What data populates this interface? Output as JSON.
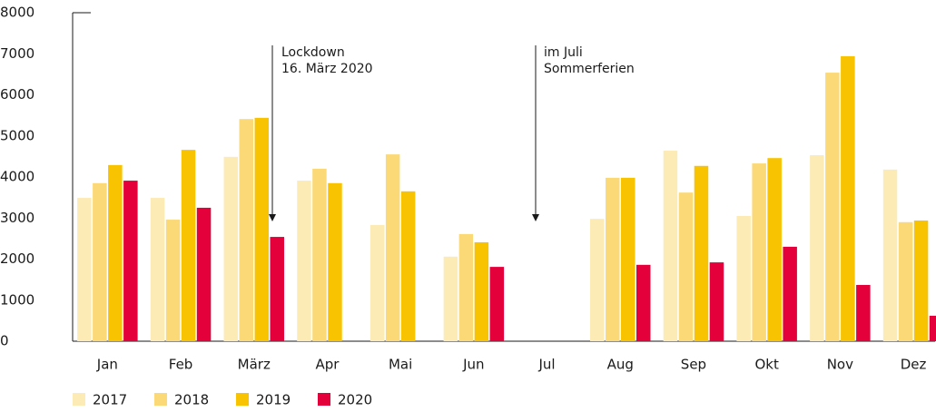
{
  "chart_data": {
    "type": "bar",
    "categories": [
      "Jan",
      "Feb",
      "März",
      "Apr",
      "Mai",
      "Jun",
      "Jul",
      "Aug",
      "Sep",
      "Okt",
      "Nov",
      "Dez"
    ],
    "series": [
      {
        "name": "2017",
        "color": "#fdebb5",
        "values": [
          3490,
          3490,
          4490,
          3910,
          2830,
          2060,
          null,
          2980,
          4640,
          3050,
          4530,
          4180
        ]
      },
      {
        "name": "2018",
        "color": "#fcd977",
        "values": [
          3850,
          2960,
          5410,
          4200,
          4550,
          2610,
          null,
          3980,
          3620,
          4330,
          6540,
          2900
        ]
      },
      {
        "name": "2019",
        "color": "#f8c300",
        "values": [
          4290,
          4660,
          5440,
          3850,
          3650,
          2410,
          null,
          3980,
          4270,
          4460,
          6940,
          2940
        ]
      },
      {
        "name": "2020",
        "color": "#e4003a",
        "values": [
          3910,
          3250,
          2540,
          null,
          null,
          1810,
          null,
          1860,
          1920,
          2300,
          1370,
          620
        ]
      }
    ],
    "ylim": [
      0,
      8000
    ],
    "yticks": [
      0,
      1000,
      2000,
      3000,
      4000,
      5000,
      6000,
      7000,
      8000
    ],
    "annotations": [
      [
        "Lockdown",
        "16. März 2020"
      ],
      [
        "im Juli",
        "Sommerferien"
      ]
    ]
  }
}
